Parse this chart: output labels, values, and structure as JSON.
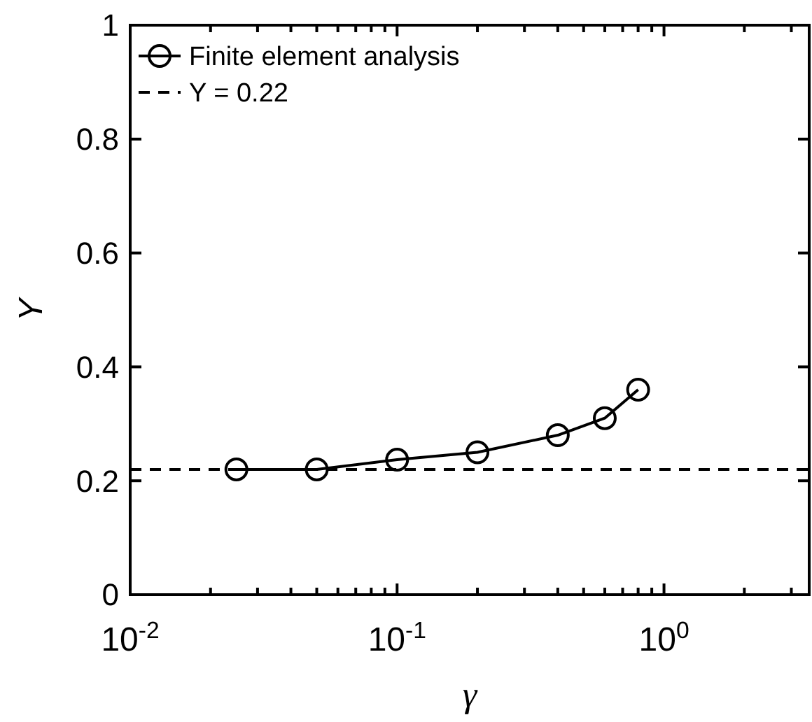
{
  "chart_data": {
    "type": "line",
    "xlabel": "γ",
    "ylabel": "Y",
    "log": "x",
    "x": [
      0.025,
      0.05,
      0.1,
      0.2,
      0.4,
      0.6,
      0.8
    ],
    "series": [
      {
        "name": "Finite element analysis",
        "color": "#000000",
        "values": [
          0.22,
          0.22,
          0.237,
          0.25,
          0.28,
          0.31,
          0.36
        ]
      }
    ],
    "marker": "circle",
    "line_style": "solid",
    "legend": "top left",
    "grid": false,
    "xlim": [
      0.01,
      3.5
    ],
    "ylim": [
      0,
      1
    ],
    "xticks": [
      {
        "value": 0.01,
        "label": "10$^{-2}$"
      },
      {
        "value": 0.02,
        "label": null
      },
      {
        "value": 0.03,
        "label": null
      },
      {
        "value": 0.04,
        "label": null
      },
      {
        "value": 0.05,
        "label": null
      },
      {
        "value": 0.06,
        "label": null
      },
      {
        "value": 0.07,
        "label": null
      },
      {
        "value": 0.08,
        "label": null
      },
      {
        "value": 0.09,
        "label": null
      },
      {
        "value": 0.1,
        "label": "10$^{-1}$"
      },
      {
        "value": 0.2,
        "label": null
      },
      {
        "value": 0.3,
        "label": null
      },
      {
        "value": 0.4,
        "label": null
      },
      {
        "value": 0.5,
        "label": null
      },
      {
        "value": 0.6,
        "label": null
      },
      {
        "value": 0.7,
        "label": null
      },
      {
        "value": 0.8,
        "label": null
      },
      {
        "value": 0.9,
        "label": null
      },
      {
        "value": 1,
        "label": "10$^{0}$"
      },
      {
        "value": 2,
        "label": null
      },
      {
        "value": 3,
        "label": null
      }
    ],
    "yticks": [
      0,
      0.2,
      0.4,
      0.6,
      0.8,
      1
    ],
    "ref_lines": [
      {
        "axis": "y",
        "value": 0.22,
        "label": "Y = 0.22",
        "color": "#000000",
        "line_style": "dashed"
      }
    ]
  }
}
